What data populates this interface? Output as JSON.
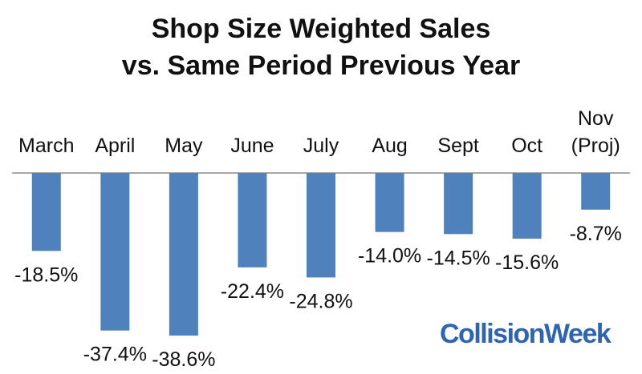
{
  "chart_data": {
    "type": "bar",
    "title_lines": [
      "Shop Size Weighted Sales",
      "vs. Same Period Previous Year"
    ],
    "categories": [
      [
        "March"
      ],
      [
        "April"
      ],
      [
        "May"
      ],
      [
        "June"
      ],
      [
        "July"
      ],
      [
        "Aug"
      ],
      [
        "Sept"
      ],
      [
        "Oct"
      ],
      [
        "Nov",
        "(Proj)"
      ]
    ],
    "values": [
      -18.5,
      -37.4,
      -38.6,
      -22.4,
      -24.8,
      -14.0,
      -14.5,
      -15.6,
      -8.7
    ],
    "value_labels": [
      "-18.5%",
      "-37.4%",
      "-38.6%",
      "-22.4%",
      "-24.8%",
      "-14.0%",
      "-14.5%",
      "-15.6%",
      "-8.7%"
    ],
    "ylim": [
      -40,
      0
    ],
    "axis_position": "top",
    "grid": false,
    "bar_color": "#4F81BD"
  },
  "logo": {
    "text": "CollisionWeek",
    "color": "#2E64B5"
  }
}
